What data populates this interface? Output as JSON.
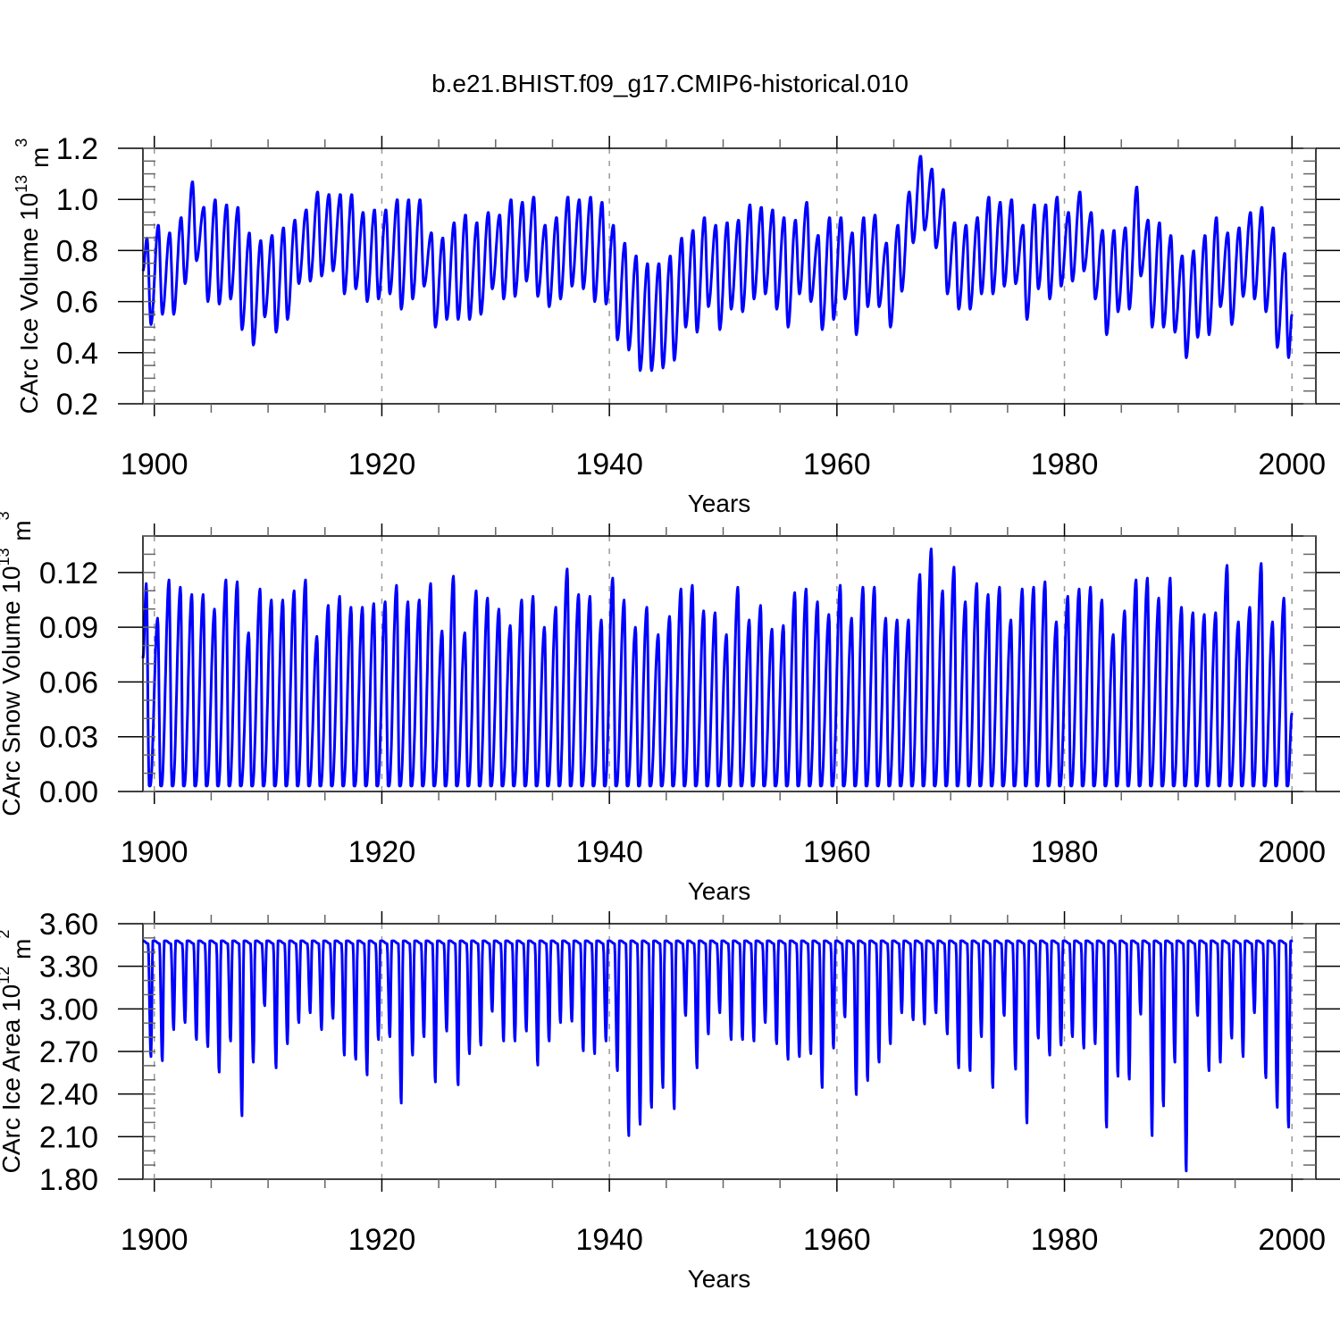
{
  "title": "b.e21.BHIST.f09_g17.CMIP6-historical.010",
  "line_color": "#0000ff",
  "chart_data": [
    {
      "type": "line",
      "name": "ice-volume",
      "ylabel": {
        "main": "CArc Ice Volume 10",
        "exp": "13",
        "unit": " m",
        "unit_exp": "3"
      },
      "xlabel": "Years",
      "xlim": [
        1899,
        2002.1
      ],
      "ylim": [
        0.2,
        1.2
      ],
      "xticks": [
        1900,
        1920,
        1940,
        1960,
        1980,
        2000
      ],
      "xtick_labels": [
        "1900",
        "1920",
        "1940",
        "1960",
        "1980",
        "2000"
      ],
      "yticks": [
        0.2,
        0.4,
        0.6,
        0.8,
        1.0,
        1.2
      ],
      "ytick_labels": [
        "0.2",
        "0.4",
        "0.6",
        "0.8",
        "1.0",
        "1.2"
      ],
      "yminor": 0.05,
      "grid": "dashed vertical at major x ticks",
      "frequency": "monthly, 1899-2000; annual max (spring) and min (September) listed",
      "start_value": 0.72,
      "end_value": 0.55,
      "years": [
        1899,
        1900,
        1901,
        1902,
        1903,
        1904,
        1905,
        1906,
        1907,
        1908,
        1909,
        1910,
        1911,
        1912,
        1913,
        1914,
        1915,
        1916,
        1917,
        1918,
        1919,
        1920,
        1921,
        1922,
        1923,
        1924,
        1925,
        1926,
        1927,
        1928,
        1929,
        1930,
        1931,
        1932,
        1933,
        1934,
        1935,
        1936,
        1937,
        1938,
        1939,
        1940,
        1941,
        1942,
        1943,
        1944,
        1945,
        1946,
        1947,
        1948,
        1949,
        1950,
        1951,
        1952,
        1953,
        1954,
        1955,
        1956,
        1957,
        1958,
        1959,
        1960,
        1961,
        1962,
        1963,
        1964,
        1965,
        1966,
        1967,
        1968,
        1969,
        1970,
        1971,
        1972,
        1973,
        1974,
        1975,
        1976,
        1977,
        1978,
        1979,
        1980,
        1981,
        1982,
        1983,
        1984,
        1985,
        1986,
        1987,
        1988,
        1989,
        1990,
        1991,
        1992,
        1993,
        1994,
        1995,
        1996,
        1997,
        1998,
        1999
      ],
      "annual_max": [
        0.85,
        0.9,
        0.87,
        0.93,
        1.07,
        0.97,
        1.0,
        0.98,
        0.97,
        0.87,
        0.84,
        0.86,
        0.89,
        0.92,
        0.96,
        1.03,
        1.02,
        1.02,
        1.02,
        0.95,
        0.96,
        0.96,
        1.0,
        1.0,
        1.0,
        0.87,
        0.85,
        0.91,
        0.94,
        0.91,
        0.95,
        0.94,
        1.0,
        0.99,
        1.01,
        0.9,
        0.93,
        1.01,
        1.0,
        1.01,
        0.99,
        0.9,
        0.83,
        0.78,
        0.75,
        0.75,
        0.78,
        0.85,
        0.88,
        0.93,
        0.9,
        0.91,
        0.92,
        0.98,
        0.97,
        0.96,
        0.93,
        0.92,
        0.99,
        0.86,
        0.93,
        0.93,
        0.87,
        0.93,
        0.94,
        0.83,
        0.9,
        1.03,
        1.17,
        1.12,
        1.04,
        0.91,
        0.9,
        0.93,
        1.01,
        0.99,
        1.0,
        0.9,
        0.98,
        0.98,
        1.01,
        0.95,
        1.03,
        0.95,
        0.88,
        0.88,
        0.89,
        1.05,
        0.92,
        0.91,
        0.86,
        0.78,
        0.8,
        0.86,
        0.93,
        0.87,
        0.89,
        0.95,
        0.97,
        0.89,
        0.79
      ],
      "annual_min": [
        0.51,
        0.55,
        0.55,
        0.67,
        0.76,
        0.6,
        0.59,
        0.61,
        0.49,
        0.43,
        0.54,
        0.48,
        0.53,
        0.67,
        0.68,
        0.7,
        0.72,
        0.63,
        0.65,
        0.6,
        0.61,
        0.63,
        0.57,
        0.61,
        0.66,
        0.5,
        0.53,
        0.53,
        0.53,
        0.55,
        0.65,
        0.61,
        0.62,
        0.68,
        0.62,
        0.58,
        0.61,
        0.66,
        0.65,
        0.6,
        0.59,
        0.45,
        0.41,
        0.33,
        0.33,
        0.34,
        0.37,
        0.5,
        0.48,
        0.58,
        0.49,
        0.57,
        0.56,
        0.61,
        0.63,
        0.57,
        0.5,
        0.63,
        0.6,
        0.49,
        0.53,
        0.61,
        0.47,
        0.58,
        0.58,
        0.5,
        0.64,
        0.83,
        0.88,
        0.81,
        0.63,
        0.57,
        0.57,
        0.63,
        0.63,
        0.66,
        0.67,
        0.53,
        0.65,
        0.61,
        0.66,
        0.68,
        0.72,
        0.61,
        0.47,
        0.56,
        0.57,
        0.7,
        0.5,
        0.5,
        0.48,
        0.38,
        0.46,
        0.47,
        0.58,
        0.51,
        0.62,
        0.61,
        0.56,
        0.42,
        0.38
      ]
    },
    {
      "type": "line",
      "name": "snow-volume",
      "ylabel": {
        "main": "CArc Snow Volume 10",
        "exp": "13",
        "unit": " m",
        "unit_exp": "3"
      },
      "xlabel": "Years",
      "xlim": [
        1899,
        2002.1
      ],
      "ylim": [
        0,
        0.14
      ],
      "xticks": [
        1900,
        1920,
        1940,
        1960,
        1980,
        2000
      ],
      "xtick_labels": [
        "1900",
        "1920",
        "1940",
        "1960",
        "1980",
        "2000"
      ],
      "yticks": [
        0,
        0.03,
        0.06,
        0.09,
        0.12
      ],
      "ytick_labels": [
        "0.00",
        "0.03",
        "0.06",
        "0.09",
        "0.12"
      ],
      "yminor": 0.01,
      "grid": "dashed vertical at major x ticks",
      "frequency": "monthly, 1899-2000; annual spring max listed, summer min ~0.003",
      "start_value": 0.073,
      "end_value": 0.043,
      "annual_min_value": 0.003,
      "annual_max": [
        0.114,
        0.095,
        0.116,
        0.112,
        0.108,
        0.108,
        0.1,
        0.116,
        0.115,
        0.087,
        0.111,
        0.105,
        0.105,
        0.11,
        0.116,
        0.085,
        0.102,
        0.107,
        0.101,
        0.101,
        0.103,
        0.104,
        0.113,
        0.104,
        0.105,
        0.114,
        0.088,
        0.118,
        0.087,
        0.11,
        0.106,
        0.1,
        0.091,
        0.105,
        0.107,
        0.09,
        0.101,
        0.122,
        0.108,
        0.107,
        0.094,
        0.117,
        0.105,
        0.09,
        0.101,
        0.086,
        0.096,
        0.111,
        0.113,
        0.099,
        0.098,
        0.086,
        0.112,
        0.094,
        0.102,
        0.089,
        0.091,
        0.109,
        0.111,
        0.104,
        0.097,
        0.113,
        0.095,
        0.112,
        0.112,
        0.095,
        0.094,
        0.094,
        0.119,
        0.133,
        0.11,
        0.123,
        0.104,
        0.114,
        0.108,
        0.112,
        0.094,
        0.111,
        0.112,
        0.115,
        0.093,
        0.107,
        0.111,
        0.112,
        0.105,
        0.086,
        0.099,
        0.116,
        0.117,
        0.106,
        0.117,
        0.101,
        0.098,
        0.097,
        0.098,
        0.124,
        0.093,
        0.101,
        0.125,
        0.093,
        0.106
      ]
    },
    {
      "type": "line",
      "name": "ice-area",
      "ylabel": {
        "main": "CArc Ice Area 10",
        "exp": "12",
        "unit": " m",
        "unit_exp": "2"
      },
      "xlabel": "Years",
      "xlim": [
        1899,
        2002.1
      ],
      "ylim": [
        1.8,
        3.6
      ],
      "xticks": [
        1900,
        1920,
        1940,
        1960,
        1980,
        2000
      ],
      "xtick_labels": [
        "1900",
        "1920",
        "1940",
        "1960",
        "1980",
        "2000"
      ],
      "yticks": [
        1.8,
        2.1,
        2.4,
        2.7,
        3.0,
        3.3,
        3.6
      ],
      "ytick_labels": [
        "1.80",
        "2.10",
        "2.40",
        "2.70",
        "3.00",
        "3.30",
        "3.60"
      ],
      "yminor": 0.1,
      "grid": "dashed vertical at major x ticks",
      "frequency": "monthly, 1899-2000; winter plateau ~3.48, annual September min listed",
      "plateau_value": 3.48,
      "end_value": 3.47,
      "annual_min": [
        2.66,
        2.63,
        2.85,
        2.9,
        2.78,
        2.73,
        2.55,
        2.77,
        2.24,
        2.62,
        3.02,
        2.58,
        2.75,
        2.9,
        2.97,
        2.85,
        2.93,
        2.67,
        2.64,
        2.53,
        2.78,
        2.8,
        2.33,
        2.67,
        2.8,
        2.48,
        2.84,
        2.46,
        2.68,
        2.74,
        2.98,
        2.77,
        2.77,
        2.84,
        2.6,
        2.77,
        2.9,
        2.91,
        2.7,
        2.68,
        2.77,
        2.56,
        2.1,
        2.18,
        2.3,
        2.44,
        2.29,
        2.95,
        2.58,
        2.82,
        2.97,
        2.78,
        2.78,
        2.77,
        2.9,
        2.75,
        2.64,
        2.66,
        2.68,
        2.44,
        2.72,
        2.94,
        2.39,
        2.49,
        2.62,
        2.75,
        2.97,
        2.92,
        2.89,
        2.97,
        2.82,
        2.58,
        2.56,
        2.8,
        2.44,
        2.95,
        2.57,
        2.19,
        2.79,
        2.67,
        2.74,
        2.8,
        2.72,
        2.75,
        2.16,
        2.52,
        2.5,
        2.96,
        2.1,
        2.31,
        2.62,
        1.85,
        2.95,
        2.56,
        2.62,
        2.79,
        2.66,
        2.97,
        2.51,
        2.3,
        2.16
      ]
    }
  ]
}
